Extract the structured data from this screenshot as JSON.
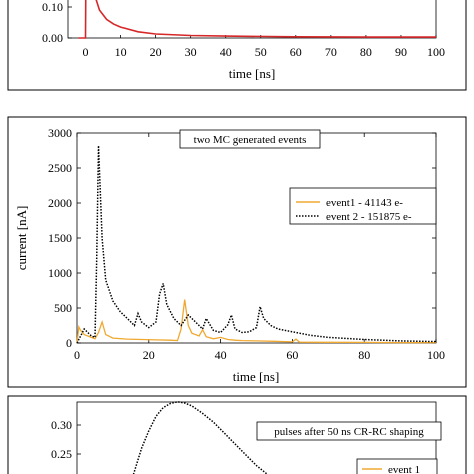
{
  "chart_data": [
    {
      "type": "line",
      "xlabel": "time [ns]",
      "xlim": [
        -5,
        100
      ],
      "xticks": [
        0,
        10,
        20,
        30,
        40,
        50,
        60,
        70,
        80,
        90,
        100
      ],
      "yticks_visible": [
        "0.00",
        "0.10"
      ],
      "series": [
        {
          "color": "#d62728",
          "x": [
            -2,
            0,
            0.1,
            2,
            4,
            6,
            8,
            10,
            15,
            20,
            30,
            40,
            60,
            80,
            100
          ],
          "y": [
            0.0,
            0.0,
            0.2,
            0.16,
            0.09,
            0.06,
            0.045,
            0.035,
            0.02,
            0.013,
            0.008,
            0.006,
            0.004,
            0.003,
            0.003
          ]
        }
      ]
    },
    {
      "type": "line",
      "title": "two MC generated events",
      "xlabel": "time [ns]",
      "ylabel": "current [nA]",
      "xlim": [
        0,
        100
      ],
      "ylim": [
        0,
        3000
      ],
      "xticks": [
        0,
        20,
        40,
        60,
        80,
        100
      ],
      "yticks": [
        0,
        500,
        1000,
        1500,
        2000,
        2500,
        3000
      ],
      "legend_position": "right",
      "series": [
        {
          "name": "event1  -   41143 e-",
          "color": "#f0a830",
          "style": "solid",
          "x": [
            0,
            0.5,
            1,
            2,
            4,
            5,
            6,
            7,
            8,
            10,
            14,
            18,
            22,
            26,
            28,
            29,
            30,
            31,
            32,
            34,
            35,
            36,
            38,
            40,
            42,
            44,
            46,
            50,
            55,
            58,
            60,
            61,
            62,
            70,
            80,
            90,
            100
          ],
          "y": [
            0,
            230,
            180,
            120,
            80,
            60,
            150,
            300,
            120,
            70,
            55,
            50,
            45,
            40,
            35,
            200,
            620,
            250,
            140,
            100,
            190,
            90,
            60,
            80,
            50,
            40,
            35,
            30,
            25,
            20,
            15,
            55,
            12,
            10,
            8,
            6,
            5
          ]
        },
        {
          "name": "event 2 - 151875 e-",
          "color": "#000000",
          "style": "dotted",
          "x": [
            0,
            1,
            2,
            3,
            4,
            5,
            5.5,
            6,
            7,
            8,
            10,
            12,
            14,
            16,
            17,
            18,
            20,
            22,
            23,
            24,
            25,
            27,
            29,
            31,
            33,
            35,
            36,
            38,
            40,
            42,
            43,
            44,
            46,
            48,
            50,
            51,
            52,
            54,
            56,
            60,
            65,
            70,
            80,
            90,
            100
          ],
          "y": [
            0,
            100,
            200,
            150,
            100,
            80,
            1200,
            2820,
            1500,
            900,
            600,
            450,
            350,
            250,
            420,
            300,
            220,
            300,
            700,
            850,
            550,
            350,
            250,
            400,
            300,
            200,
            350,
            180,
            150,
            260,
            400,
            200,
            150,
            160,
            220,
            520,
            350,
            250,
            200,
            160,
            110,
            80,
            50,
            30,
            20
          ]
        }
      ]
    },
    {
      "type": "line",
      "title": "pulses after 50 ns CR-RC shaping",
      "yticks_visible": [
        "0.30",
        "0.25"
      ],
      "legend_visible": [
        "event 1"
      ],
      "series": [
        {
          "name": "event 1",
          "color": "#f0a830",
          "style": "solid"
        },
        {
          "color": "#000000",
          "style": "dotted",
          "x": [
            15,
            18,
            20,
            22,
            24,
            26,
            28,
            30,
            32,
            35,
            38,
            42,
            46,
            50,
            55,
            60
          ],
          "y": [
            0.2,
            0.26,
            0.29,
            0.315,
            0.33,
            0.337,
            0.34,
            0.338,
            0.333,
            0.32,
            0.305,
            0.28,
            0.255,
            0.23,
            0.205,
            0.18
          ]
        }
      ]
    }
  ]
}
